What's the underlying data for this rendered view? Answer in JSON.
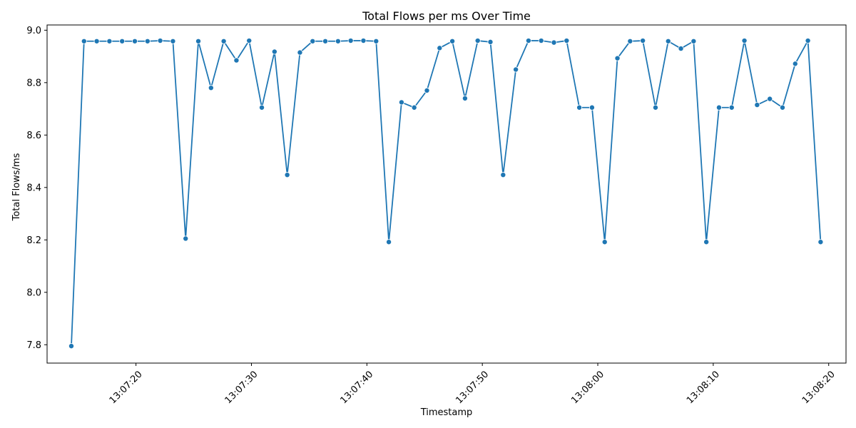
{
  "chart_data": {
    "type": "line",
    "title": "Total Flows per ms Over Time",
    "xlabel": "Timestamp",
    "ylabel": "Total Flows/ms",
    "grid": false,
    "line_color": "#1f77b4",
    "x_start": "13:07:14.4",
    "x_step_seconds": 1.1,
    "xlim": [
      "13:07:12.3",
      "13:08:21.5"
    ],
    "x_ticks": [
      "13:07:20",
      "13:07:30",
      "13:07:40",
      "13:07:50",
      "13:08:00",
      "13:08:10",
      "13:08:20"
    ],
    "ylim": [
      7.73,
      9.02
    ],
    "y_ticks": [
      7.8,
      8.0,
      8.2,
      8.4,
      8.6,
      8.8,
      9.0
    ],
    "y_tick_labels": [
      "7.8",
      "8.0",
      "8.2",
      "8.4",
      "8.6",
      "8.8",
      "9.0"
    ],
    "series": [
      {
        "values": [
          7.795,
          8.958,
          8.958,
          8.958,
          8.958,
          8.958,
          8.958,
          8.96,
          8.958,
          8.205,
          8.958,
          8.78,
          8.958,
          8.885,
          8.96,
          8.705,
          8.918,
          8.448,
          8.915,
          8.958,
          8.958,
          8.958,
          8.96,
          8.96,
          8.958,
          8.192,
          8.725,
          8.705,
          8.77,
          8.932,
          8.958,
          8.74,
          8.96,
          8.955,
          8.448,
          8.85,
          8.96,
          8.96,
          8.953,
          8.96,
          8.705,
          8.705,
          8.192,
          8.893,
          8.958,
          8.96,
          8.705,
          8.958,
          8.93,
          8.958,
          8.192,
          8.705,
          8.705,
          8.96,
          8.715,
          8.738,
          8.705,
          8.872,
          8.96,
          8.192
        ]
      }
    ]
  }
}
